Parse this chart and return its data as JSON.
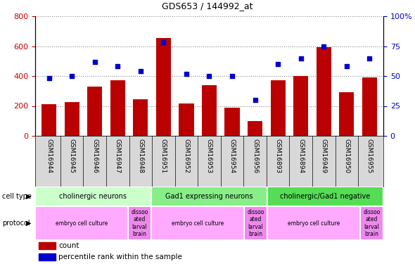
{
  "title": "GDS653 / 144992_at",
  "samples": [
    "GSM16944",
    "GSM16945",
    "GSM16946",
    "GSM16947",
    "GSM16948",
    "GSM16951",
    "GSM16952",
    "GSM16953",
    "GSM16954",
    "GSM16956",
    "GSM16893",
    "GSM16894",
    "GSM16949",
    "GSM16950",
    "GSM16955"
  ],
  "counts": [
    210,
    225,
    330,
    370,
    245,
    655,
    215,
    340,
    190,
    100,
    370,
    400,
    595,
    290,
    390
  ],
  "percentiles": [
    48,
    50,
    62,
    58,
    54,
    78,
    52,
    50,
    50,
    30,
    60,
    65,
    75,
    58,
    65
  ],
  "bar_color": "#bb0000",
  "dot_color": "#0000cc",
  "ylim_left": [
    0,
    800
  ],
  "ylim_right": [
    0,
    100
  ],
  "yticks_left": [
    0,
    200,
    400,
    600,
    800
  ],
  "yticks_right": [
    0,
    25,
    50,
    75,
    100
  ],
  "cell_type_groups": [
    {
      "label": "cholinergic neurons",
      "start": 0,
      "end": 4,
      "color": "#ccffcc"
    },
    {
      "label": "Gad1 expressing neurons",
      "start": 5,
      "end": 9,
      "color": "#88ee88"
    },
    {
      "label": "cholinergic/Gad1 negative",
      "start": 10,
      "end": 14,
      "color": "#55dd55"
    }
  ],
  "protocol_groups": [
    {
      "label": "embryo cell culture",
      "start": 0,
      "end": 3,
      "color": "#ffaaff"
    },
    {
      "label": "dissoo\nated\nlarval\nbrain",
      "start": 4,
      "end": 4,
      "color": "#ee88ee"
    },
    {
      "label": "embryo cell culture",
      "start": 5,
      "end": 8,
      "color": "#ffaaff"
    },
    {
      "label": "dissoo\nated\nlarval\nbrain",
      "start": 9,
      "end": 9,
      "color": "#ee88ee"
    },
    {
      "label": "embryo cell culture",
      "start": 10,
      "end": 13,
      "color": "#ffaaff"
    },
    {
      "label": "dissoo\nated\nlarval\nbrain",
      "start": 14,
      "end": 14,
      "color": "#ee88ee"
    }
  ],
  "legend_count_label": "count",
  "legend_pct_label": "percentile rank within the sample",
  "cell_type_row_label": "cell type",
  "protocol_row_label": "protocol",
  "tick_label_color_left": "#cc0000",
  "tick_label_color_right": "#0000cc",
  "xtick_bg_color": "#d8d8d8",
  "grid_color": "#888888"
}
